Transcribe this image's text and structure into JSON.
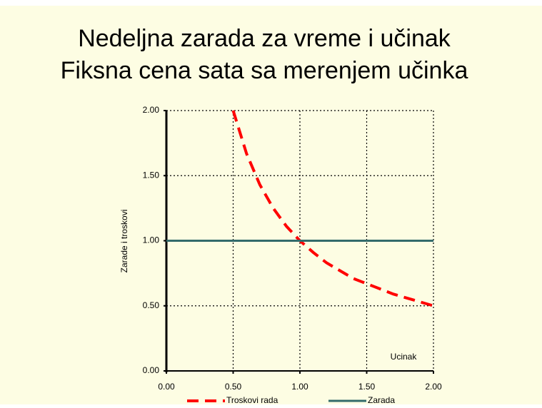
{
  "chart_data": {
    "type": "line",
    "title": "Nedeljna zarada za vreme i učinak",
    "subtitle": "Fiksna cena sata sa merenjem učinka",
    "y_label": "Zarade i troskovi",
    "x_label": "Ucinak",
    "xlim": [
      0,
      2
    ],
    "ylim": [
      0,
      2
    ],
    "xticks": [
      {
        "value": 0,
        "label": "0.00"
      },
      {
        "value": 0.5,
        "label": "0.50"
      },
      {
        "value": 1,
        "label": "1.00"
      },
      {
        "value": 1.5,
        "label": "1.50"
      },
      {
        "value": 2,
        "label": "2.00"
      }
    ],
    "yticks": [
      {
        "value": 0,
        "label": "0.00"
      },
      {
        "value": 0.5,
        "label": "0.50"
      },
      {
        "value": 1,
        "label": "1.00"
      },
      {
        "value": 1.5,
        "label": "1.50"
      },
      {
        "value": 2,
        "label": "2.00"
      }
    ],
    "grid": true,
    "series": [
      {
        "name": "Troskovi rada",
        "color": "#ff0000",
        "dashed": true,
        "x": [
          0.5,
          0.6,
          0.7,
          0.8,
          0.9,
          1.0,
          1.1,
          1.2,
          1.3,
          1.4,
          1.5,
          1.6,
          1.7,
          1.8,
          1.9,
          2.0
        ],
        "values": [
          2.0,
          1.67,
          1.43,
          1.25,
          1.11,
          1.0,
          0.91,
          0.83,
          0.77,
          0.71,
          0.67,
          0.63,
          0.59,
          0.56,
          0.53,
          0.5
        ]
      },
      {
        "name": "Zarada",
        "color": "#336b6b",
        "dashed": false,
        "x": [
          0,
          2
        ],
        "values": [
          1.0,
          1.0
        ]
      }
    ]
  }
}
